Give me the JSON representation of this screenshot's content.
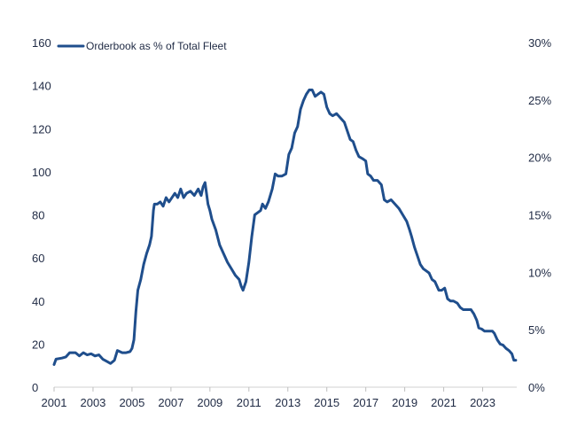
{
  "chart_data": {
    "type": "line",
    "title": "",
    "xlabel": "",
    "ylabel": "",
    "y2label": "",
    "xlim": [
      2001,
      2024.75
    ],
    "ylim": [
      0,
      160
    ],
    "y2lim": [
      0,
      30
    ],
    "grid": false,
    "legend": "top-left",
    "x_ticks": [
      2001,
      2003,
      2005,
      2007,
      2009,
      2011,
      2013,
      2015,
      2017,
      2019,
      2021,
      2023
    ],
    "x_tick_labels": [
      "2001",
      "2003",
      "2005",
      "2007",
      "2009",
      "2011",
      "2013",
      "2015",
      "2017",
      "2019",
      "2021",
      "2023"
    ],
    "y_ticks": [
      0,
      20,
      40,
      60,
      80,
      100,
      120,
      140,
      160
    ],
    "y_tick_labels": [
      "0",
      "20",
      "40",
      "60",
      "80",
      "100",
      "120",
      "140",
      "160"
    ],
    "y2_ticks": [
      0,
      5,
      10,
      15,
      20,
      25,
      30
    ],
    "y2_tick_labels": [
      "0%",
      "5%",
      "10%",
      "15%",
      "20%",
      "25%",
      "30%"
    ],
    "series": [
      {
        "name": "Orderbook as % of Total Fleet",
        "color": "#1f4e8c",
        "axis": "left",
        "points": [
          [
            2001.0,
            10.5
          ],
          [
            2001.1,
            13
          ],
          [
            2001.4,
            13.5
          ],
          [
            2001.6,
            14
          ],
          [
            2001.8,
            16
          ],
          [
            2002.1,
            16
          ],
          [
            2002.3,
            14.5
          ],
          [
            2002.5,
            16
          ],
          [
            2002.7,
            15
          ],
          [
            2002.9,
            15.5
          ],
          [
            2003.1,
            14.5
          ],
          [
            2003.3,
            15
          ],
          [
            2003.5,
            13
          ],
          [
            2003.7,
            12
          ],
          [
            2003.9,
            11
          ],
          [
            2004.1,
            12.5
          ],
          [
            2004.25,
            17
          ],
          [
            2004.5,
            16
          ],
          [
            2004.7,
            16
          ],
          [
            2004.9,
            16.5
          ],
          [
            2005.0,
            18
          ],
          [
            2005.1,
            22
          ],
          [
            2005.2,
            35
          ],
          [
            2005.3,
            45
          ],
          [
            2005.45,
            50
          ],
          [
            2005.6,
            57
          ],
          [
            2005.75,
            62
          ],
          [
            2005.9,
            66
          ],
          [
            2006.0,
            70
          ],
          [
            2006.1,
            82
          ],
          [
            2006.15,
            85
          ],
          [
            2006.3,
            85
          ],
          [
            2006.45,
            86
          ],
          [
            2006.6,
            84
          ],
          [
            2006.75,
            88
          ],
          [
            2006.9,
            86
          ],
          [
            2007.05,
            88
          ],
          [
            2007.2,
            90
          ],
          [
            2007.35,
            88
          ],
          [
            2007.5,
            92
          ],
          [
            2007.65,
            88
          ],
          [
            2007.8,
            90
          ],
          [
            2008.0,
            91
          ],
          [
            2008.2,
            89
          ],
          [
            2008.4,
            92
          ],
          [
            2008.55,
            89
          ],
          [
            2008.65,
            93
          ],
          [
            2008.75,
            95
          ],
          [
            2008.9,
            85
          ],
          [
            2009.0,
            82
          ],
          [
            2009.1,
            78
          ],
          [
            2009.3,
            73
          ],
          [
            2009.5,
            66
          ],
          [
            2009.7,
            62
          ],
          [
            2009.9,
            58
          ],
          [
            2010.1,
            55
          ],
          [
            2010.3,
            52
          ],
          [
            2010.5,
            50
          ],
          [
            2010.6,
            47
          ],
          [
            2010.7,
            45
          ],
          [
            2010.85,
            49
          ],
          [
            2011.0,
            58
          ],
          [
            2011.15,
            70
          ],
          [
            2011.3,
            80
          ],
          [
            2011.45,
            81
          ],
          [
            2011.6,
            82
          ],
          [
            2011.7,
            85
          ],
          [
            2011.85,
            83
          ],
          [
            2012.0,
            86
          ],
          [
            2012.2,
            92
          ],
          [
            2012.35,
            99
          ],
          [
            2012.5,
            98
          ],
          [
            2012.7,
            98
          ],
          [
            2012.9,
            99
          ],
          [
            2013.05,
            108
          ],
          [
            2013.2,
            111
          ],
          [
            2013.35,
            118
          ],
          [
            2013.5,
            121
          ],
          [
            2013.65,
            129
          ],
          [
            2013.8,
            133
          ],
          [
            2013.95,
            136
          ],
          [
            2014.1,
            138
          ],
          [
            2014.25,
            138
          ],
          [
            2014.4,
            135
          ],
          [
            2014.55,
            136
          ],
          [
            2014.7,
            137
          ],
          [
            2014.85,
            136
          ],
          [
            2015.0,
            130
          ],
          [
            2015.15,
            127
          ],
          [
            2015.3,
            126
          ],
          [
            2015.5,
            127
          ],
          [
            2015.7,
            125
          ],
          [
            2015.9,
            123
          ],
          [
            2016.05,
            119
          ],
          [
            2016.2,
            115
          ],
          [
            2016.35,
            114
          ],
          [
            2016.5,
            110
          ],
          [
            2016.65,
            107
          ],
          [
            2016.85,
            106
          ],
          [
            2017.0,
            105
          ],
          [
            2017.1,
            99
          ],
          [
            2017.25,
            98
          ],
          [
            2017.4,
            96
          ],
          [
            2017.6,
            96
          ],
          [
            2017.8,
            94
          ],
          [
            2017.95,
            87
          ],
          [
            2018.1,
            86
          ],
          [
            2018.3,
            87
          ],
          [
            2018.5,
            85
          ],
          [
            2018.7,
            83
          ],
          [
            2018.9,
            80
          ],
          [
            2019.1,
            77
          ],
          [
            2019.25,
            73
          ],
          [
            2019.35,
            70
          ],
          [
            2019.5,
            65
          ],
          [
            2019.65,
            61
          ],
          [
            2019.8,
            57
          ],
          [
            2019.95,
            55
          ],
          [
            2020.1,
            54
          ],
          [
            2020.25,
            53
          ],
          [
            2020.4,
            50
          ],
          [
            2020.55,
            49
          ],
          [
            2020.75,
            45
          ],
          [
            2020.9,
            45
          ],
          [
            2021.05,
            46
          ],
          [
            2021.2,
            41
          ],
          [
            2021.35,
            40
          ],
          [
            2021.5,
            40
          ],
          [
            2021.7,
            39
          ],
          [
            2021.85,
            37
          ],
          [
            2022.0,
            36
          ],
          [
            2022.2,
            36
          ],
          [
            2022.4,
            36
          ],
          [
            2022.55,
            34
          ],
          [
            2022.7,
            31
          ],
          [
            2022.8,
            27.5
          ],
          [
            2022.95,
            27
          ],
          [
            2023.1,
            26
          ],
          [
            2023.3,
            26
          ],
          [
            2023.5,
            26
          ],
          [
            2023.6,
            25
          ],
          [
            2023.75,
            22
          ],
          [
            2023.9,
            20
          ],
          [
            2024.05,
            19.5
          ],
          [
            2024.2,
            18
          ],
          [
            2024.35,
            17
          ],
          [
            2024.5,
            15.5
          ],
          [
            2024.6,
            12.5
          ],
          [
            2024.7,
            12.5
          ]
        ]
      }
    ]
  }
}
